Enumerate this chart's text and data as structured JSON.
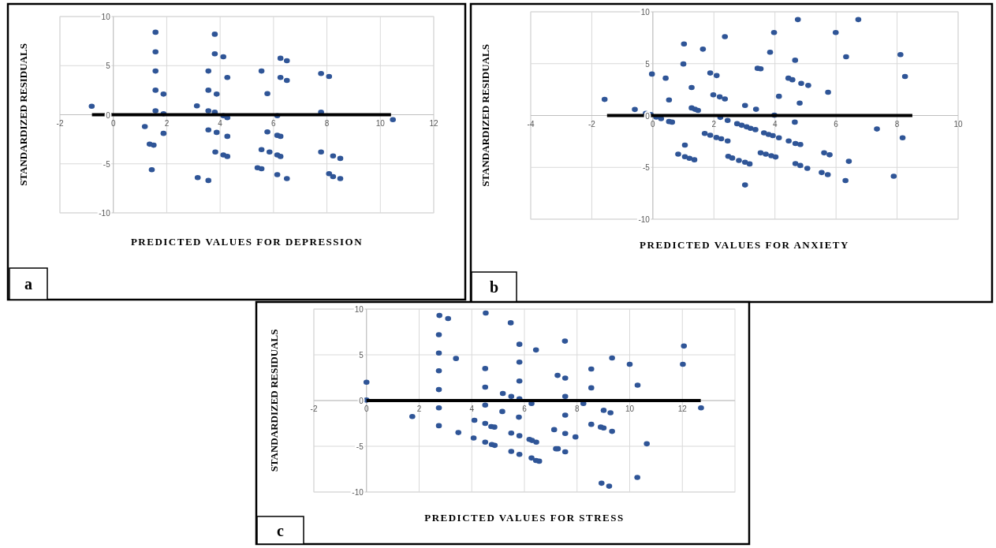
{
  "chart_data": [
    {
      "type": "scatter",
      "xlabel": "PREDICTED VALUES FOR DEPRESSION",
      "ylabel": "STANDARDIZED RESIDUALS",
      "xlim": [
        -2,
        12
      ],
      "ylim": [
        -10,
        10
      ],
      "xticks": [
        -2,
        0,
        2,
        4,
        6,
        8,
        10,
        12
      ],
      "yticks": [
        -10,
        -5,
        0,
        5,
        10
      ],
      "grid": true,
      "marker": "circle",
      "annotations": [
        "a"
      ],
      "series": [
        {
          "color": "#2f5597",
          "x": [
            -0.81,
            1.58,
            1.58,
            1.58,
            1.58,
            1.58,
            1.88,
            1.88,
            1.18,
            1.36,
            1.51,
            1.44,
            1.88,
            3.13,
            3.56,
            3.56,
            3.56,
            3.8,
            3.8,
            4.12,
            3.87,
            3.8,
            4.12,
            4.27,
            4.27,
            3.56,
            3.87,
            4.27,
            3.82,
            4.12,
            4.27,
            3.16,
            3.56,
            5.55,
            5.77,
            5.77,
            5.55,
            5.85,
            6.14,
            6.26,
            6.14,
            6.26,
            5.4,
            5.55,
            6.14,
            6.5,
            6.26,
            6.5,
            6.26,
            6.5,
            6.14,
            7.78,
            8.08,
            7.78,
            7.78,
            8.23,
            8.5,
            8.08,
            8.23,
            8.5,
            10.47
          ],
          "values": [
            0.86,
            8.4,
            6.4,
            4.45,
            2.5,
            0.4,
            2.1,
            0.1,
            -1.2,
            -3.0,
            -3.1,
            -5.6,
            -1.9,
            0.9,
            4.45,
            2.5,
            0.4,
            8.2,
            6.2,
            5.9,
            2.1,
            0.25,
            -0.1,
            -0.3,
            3.8,
            -1.55,
            -1.8,
            -2.2,
            -3.8,
            -4.1,
            -4.25,
            -6.4,
            -6.7,
            4.45,
            2.15,
            -1.75,
            -3.55,
            -3.8,
            -2.1,
            -2.2,
            -4.1,
            -4.25,
            -5.4,
            -5.5,
            -6.1,
            -6.5,
            5.75,
            5.5,
            3.8,
            3.5,
            -0.1,
            4.2,
            3.9,
            0.25,
            -3.8,
            -4.2,
            -4.45,
            -6.0,
            -6.3,
            -6.5,
            -0.5
          ]
        },
        {
          "type": "line",
          "color": "#000000",
          "marker": "none",
          "x": [
            -0.8,
            10.4
          ],
          "values": [
            0,
            0
          ]
        }
      ]
    },
    {
      "type": "scatter",
      "xlabel": "PREDICTED VALUES FOR ANXIETY",
      "ylabel": "STANDARDIZED RESIDUALS",
      "xlim": [
        -4,
        10
      ],
      "ylim": [
        -10,
        10
      ],
      "xticks": [
        -4,
        -2,
        0,
        2,
        4,
        6,
        8,
        10
      ],
      "yticks": [
        -10,
        -5,
        0,
        5,
        10
      ],
      "grid": true,
      "marker": "circle",
      "annotations": [
        "b"
      ],
      "series": [
        {
          "color": "#2f5597",
          "x": [
            -1.58,
            -0.59,
            -0.23,
            -0.07,
            0.11,
            0.27,
            0.53,
            0.63,
            -0.03,
            0.42,
            0.53,
            1.02,
            1.0,
            1.27,
            1.27,
            1.38,
            1.48,
            1.64,
            1.88,
            2.09,
            1.98,
            2.19,
            2.36,
            2.36,
            1.05,
            0.83,
            1.05,
            1.2,
            1.36,
            1.7,
            1.88,
            2.08,
            2.24,
            2.45,
            2.21,
            2.45,
            2.76,
            2.91,
            3.07,
            3.2,
            3.36,
            3.64,
            3.79,
            3.93,
            4.13,
            4.45,
            4.67,
            4.83,
            2.47,
            2.6,
            2.82,
            3.02,
            3.17,
            3.53,
            3.7,
            3.88,
            4.02,
            3.02,
            3.02,
            3.38,
            3.98,
            3.43,
            3.53,
            3.84,
            3.97,
            4.13,
            4.44,
            4.57,
            4.66,
            4.75,
            4.81,
            4.65,
            4.86,
            5.09,
            4.67,
            4.83,
            5.06,
            5.74,
            5.61,
            5.79,
            5.53,
            5.73,
            5.99,
            6.33,
            6.42,
            6.31,
            6.73,
            7.34,
            7.89,
            8.11,
            8.26,
            8.18
          ],
          "values": [
            1.55,
            0.58,
            0.2,
            0.1,
            -0.15,
            -0.3,
            -0.58,
            -0.64,
            4.0,
            3.6,
            1.5,
            6.9,
            4.97,
            2.7,
            0.73,
            0.6,
            0.5,
            6.4,
            4.1,
            3.85,
            2.0,
            1.8,
            1.6,
            7.6,
            -2.85,
            -3.73,
            -3.97,
            -4.12,
            -4.27,
            -1.73,
            -1.9,
            -2.12,
            -2.24,
            -2.45,
            -0.18,
            -0.48,
            -0.79,
            -0.94,
            -1.09,
            -1.24,
            -1.36,
            -1.67,
            -1.82,
            -1.94,
            -2.15,
            -2.45,
            -2.7,
            -2.8,
            -3.94,
            -4.1,
            -4.33,
            -4.5,
            -4.67,
            -3.6,
            -3.73,
            -3.88,
            -4.0,
            -6.7,
            0.97,
            0.6,
            0.03,
            4.55,
            4.5,
            6.1,
            8.0,
            1.85,
            3.6,
            3.45,
            5.33,
            9.25,
            1.2,
            -0.64,
            3.1,
            2.9,
            -4.64,
            -4.82,
            -5.1,
            2.24,
            -3.6,
            -3.79,
            -5.5,
            -5.7,
            8.0,
            5.67,
            -4.42,
            -6.27,
            9.25,
            -1.3,
            -5.85,
            5.88,
            3.76,
            -2.15
          ]
        },
        {
          "type": "line",
          "color": "#000000",
          "marker": "none",
          "x": [
            -1.5,
            8.5
          ],
          "values": [
            0,
            0
          ]
        }
      ]
    },
    {
      "type": "scatter",
      "xlabel": "PREDICTED VALUES FOR STRESS",
      "ylabel": "STANDARDIZED RESIDUALS",
      "xlim": [
        -2,
        14
      ],
      "ylim": [
        -10,
        10
      ],
      "xticks": [
        -2,
        0,
        2,
        4,
        6,
        8,
        10,
        12
      ],
      "yticks": [
        -10,
        -5,
        0,
        5,
        10
      ],
      "grid": true,
      "marker": "circle",
      "annotations": [
        "c"
      ],
      "series": [
        {
          "color": "#2f5597",
          "x": [
            0,
            0,
            1.74,
            2.77,
            3.1,
            4.53,
            5.48,
            2.75,
            2.75,
            2.75,
            2.75,
            2.75,
            2.75,
            3.4,
            3.49,
            4.51,
            4.51,
            4.51,
            4.51,
            4.51,
            4.1,
            4.07,
            4.74,
            4.86,
            4.76,
            4.87,
            5.16,
            5.18,
            5.5,
            5.5,
            5.5,
            5.81,
            5.81,
            5.81,
            5.81,
            5.79,
            5.81,
            5.81,
            6.44,
            6.27,
            6.19,
            6.29,
            6.45,
            6.27,
            6.44,
            6.56,
            7.54,
            7.26,
            7.55,
            7.55,
            7.55,
            7.55,
            7.13,
            7.94,
            7.2,
            7.27,
            7.55,
            8.24,
            8.54,
            8.54,
            8.54,
            8.9,
            9.01,
            9.01,
            9.27,
            9.33,
            9.33,
            8.93,
            9.22,
            10.0,
            10.3,
            10.29,
            10.65,
            12.06,
            12.02,
            12.71
          ],
          "values": [
            2.0,
            0.05,
            -1.74,
            9.3,
            8.96,
            9.57,
            8.5,
            7.2,
            5.2,
            3.25,
            1.2,
            -0.8,
            -2.75,
            4.6,
            -3.5,
            3.5,
            1.47,
            -0.5,
            -2.5,
            -4.55,
            -2.15,
            -4.1,
            -2.85,
            -2.9,
            -4.8,
            -4.9,
            -1.2,
            0.78,
            0.45,
            -3.55,
            -5.56,
            6.15,
            4.2,
            2.14,
            0.19,
            -1.82,
            -3.85,
            -5.88,
            5.53,
            -0.32,
            -4.25,
            -4.36,
            -4.55,
            -6.28,
            -6.55,
            -6.63,
            6.5,
            2.75,
            2.46,
            0.45,
            -1.6,
            -3.6,
            -3.18,
            -3.98,
            -5.27,
            -5.27,
            -5.6,
            -0.32,
            3.45,
            1.39,
            -2.6,
            -2.9,
            -3.0,
            -1.07,
            -1.34,
            -3.37,
            4.65,
            -9.04,
            -9.36,
            3.96,
            1.68,
            -8.4,
            -4.73,
            5.96,
            3.96,
            -0.8
          ]
        },
        {
          "type": "line",
          "color": "#000000",
          "marker": "none",
          "x": [
            0,
            12.7
          ],
          "values": [
            0,
            0
          ]
        }
      ]
    }
  ]
}
